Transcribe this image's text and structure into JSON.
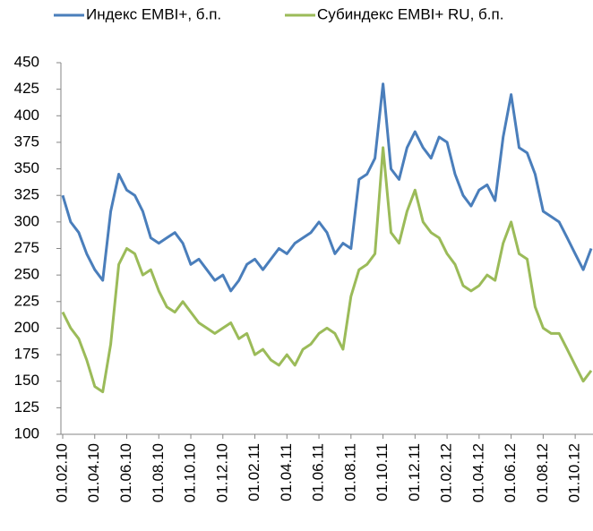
{
  "chart_data": {
    "type": "line",
    "categories": [
      "01.02.10",
      null,
      null,
      null,
      "01.04.10",
      null,
      null,
      null,
      "01.06.10",
      null,
      null,
      null,
      "01.08.10",
      null,
      null,
      null,
      "01.10.10",
      null,
      null,
      null,
      "01.12.10",
      null,
      null,
      null,
      "01.02.11",
      null,
      null,
      null,
      "01.04.11",
      null,
      null,
      null,
      "01.06.11",
      null,
      null,
      null,
      "01.08.11",
      null,
      null,
      null,
      "01.10.11",
      null,
      null,
      null,
      "01.12.11",
      null,
      null,
      null,
      "01.02.12",
      null,
      null,
      null,
      "01.04.12",
      null,
      null,
      null,
      "01.06.12",
      null,
      null,
      null,
      "01.08.12",
      null,
      null,
      null,
      "01.10.12",
      null,
      null
    ],
    "series": [
      {
        "name": "Индекс EMBI+, б.п.",
        "color": "#4a7ebb",
        "values": [
          325,
          300,
          290,
          270,
          255,
          245,
          310,
          345,
          330,
          325,
          310,
          285,
          280,
          285,
          290,
          280,
          260,
          265,
          255,
          245,
          250,
          235,
          245,
          260,
          265,
          255,
          265,
          275,
          270,
          280,
          285,
          290,
          300,
          290,
          270,
          280,
          275,
          340,
          345,
          360,
          430,
          350,
          340,
          370,
          385,
          370,
          360,
          380,
          375,
          345,
          325,
          315,
          330,
          335,
          320,
          380,
          420,
          370,
          365,
          345,
          310,
          305,
          300,
          285,
          270,
          255,
          275
        ]
      },
      {
        "name": "Субиндекс EMBI+ RU, б.п.",
        "color": "#9bbb59",
        "values": [
          215,
          200,
          190,
          170,
          145,
          140,
          185,
          260,
          275,
          270,
          250,
          255,
          235,
          220,
          215,
          225,
          215,
          205,
          200,
          195,
          200,
          205,
          190,
          195,
          175,
          180,
          170,
          165,
          175,
          165,
          180,
          185,
          195,
          200,
          195,
          180,
          230,
          255,
          260,
          270,
          370,
          290,
          280,
          310,
          330,
          300,
          290,
          285,
          270,
          260,
          240,
          235,
          240,
          250,
          245,
          280,
          300,
          270,
          265,
          220,
          200,
          195,
          195,
          180,
          165,
          150,
          160
        ]
      }
    ],
    "ylim": [
      100,
      450
    ],
    "yticks": [
      100,
      125,
      150,
      175,
      200,
      225,
      250,
      275,
      300,
      325,
      350,
      375,
      400,
      425,
      450
    ],
    "grid": false,
    "legend": "top"
  }
}
